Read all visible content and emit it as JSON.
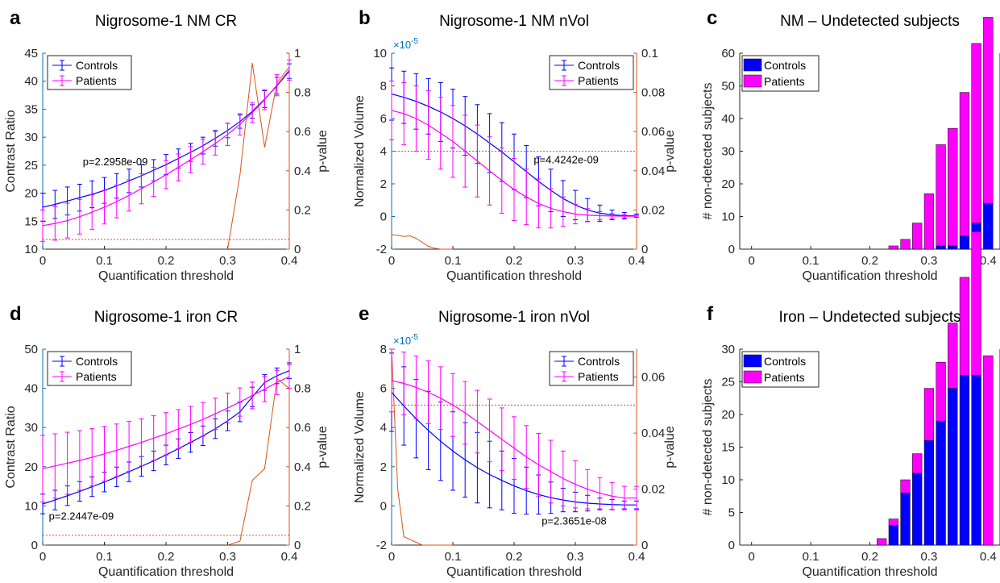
{
  "colors": {
    "controls": "#0000FF",
    "patients": "#FF00FF",
    "pvalue": "#D95319",
    "left_axis": "#0072BD",
    "axis": "#262626",
    "overlap": "#8000FF"
  },
  "chart_data": [
    {
      "id": "a",
      "type": "line",
      "letter": "a",
      "title": "Nigrosome-1 NM CR",
      "xlabel": "Quantification threshold",
      "ylabel": "Contrast Ratio",
      "y2label": "p-value",
      "xlim": [
        0,
        0.4
      ],
      "ylim": [
        10,
        45
      ],
      "y2lim": [
        0,
        1
      ],
      "xticks": [
        0,
        0.1,
        0.2,
        0.3,
        0.4
      ],
      "xtick_labels": [
        "0",
        "0.1",
        "0.2",
        "0.3",
        "0.4"
      ],
      "yticks": [
        10,
        15,
        20,
        25,
        30,
        35,
        40,
        45
      ],
      "ytick_labels": [
        "10",
        "15",
        "20",
        "25",
        "30",
        "35",
        "40",
        "45"
      ],
      "y2ticks": [
        0,
        0.2,
        0.4,
        0.6,
        0.8,
        1
      ],
      "y2tick_labels": [
        "0",
        "0.2",
        "0.4",
        "0.6",
        "0.8",
        "1"
      ],
      "legend": {
        "position": "top-left",
        "entries": [
          "Controls",
          "Patients"
        ]
      },
      "x": [
        0,
        0.02,
        0.04,
        0.06,
        0.08,
        0.1,
        0.12,
        0.14,
        0.16,
        0.18,
        0.2,
        0.22,
        0.24,
        0.26,
        0.28,
        0.3,
        0.32,
        0.34,
        0.36,
        0.38,
        0.4
      ],
      "series": [
        {
          "name": "Controls",
          "values": [
            17.5,
            18.0,
            18.6,
            19.2,
            19.8,
            20.5,
            21.3,
            22.2,
            23.1,
            24.1,
            25.1,
            26.2,
            27.3,
            28.5,
            29.8,
            31.2,
            32.8,
            34.6,
            36.8,
            39.2,
            41.8
          ],
          "errors": [
            2.5,
            2.5,
            2.5,
            2.4,
            2.4,
            2.3,
            2.2,
            2.1,
            2.0,
            1.9,
            1.8,
            1.7,
            1.6,
            1.5,
            1.4,
            1.3,
            1.2,
            1.2,
            1.5,
            1.5,
            1.3
          ]
        },
        {
          "name": "Patients",
          "values": [
            14.2,
            14.6,
            15.1,
            15.8,
            16.6,
            17.5,
            18.5,
            19.6,
            20.8,
            22.0,
            23.3,
            24.6,
            26.0,
            27.4,
            28.9,
            30.5,
            32.3,
            34.4,
            36.7,
            39.3,
            42.0
          ],
          "errors": [
            2.8,
            3.0,
            3.1,
            3.1,
            3.1,
            3.0,
            2.9,
            2.8,
            2.7,
            2.6,
            2.5,
            2.4,
            2.3,
            2.2,
            2.1,
            2.0,
            1.9,
            1.8,
            1.8,
            1.9,
            1.8
          ]
        }
      ],
      "pvalue": {
        "x": [
          0.3,
          0.32,
          0.34,
          0.36,
          0.38,
          0.4
        ],
        "values": [
          0.0,
          0.38,
          0.95,
          0.52,
          0.85,
          0.93
        ]
      },
      "threshold": 0.05,
      "annotation": "p=2.2958e-09",
      "annotation_at": [
        0.065,
        25.0
      ]
    },
    {
      "id": "b",
      "type": "line",
      "letter": "b",
      "title": "Nigrosome-1 NM nVol",
      "xlabel": "Quantification threshold",
      "ylabel": "Normalized Volume",
      "y2label": "p-value",
      "exponent": "×10",
      "exponent_power": "-5",
      "xlim": [
        0,
        0.4
      ],
      "ylim": [
        -2,
        10
      ],
      "y2lim": [
        0,
        0.1
      ],
      "xticks": [
        0,
        0.1,
        0.2,
        0.3,
        0.4
      ],
      "xtick_labels": [
        "0",
        "0.1",
        "0.2",
        "0.3",
        "0.4"
      ],
      "yticks": [
        -2,
        0,
        2,
        4,
        6,
        8,
        10
      ],
      "ytick_labels": [
        "-2",
        "0",
        "2",
        "4",
        "6",
        "8",
        "10"
      ],
      "y2ticks": [
        0,
        0.02,
        0.04,
        0.06,
        0.08,
        0.1
      ],
      "y2tick_labels": [
        "0",
        "0.02",
        "0.04",
        "0.06",
        "0.08",
        "0.1"
      ],
      "legend": {
        "position": "top-right",
        "entries": [
          "Controls",
          "Patients"
        ]
      },
      "x": [
        0,
        0.02,
        0.04,
        0.06,
        0.08,
        0.1,
        0.12,
        0.14,
        0.16,
        0.18,
        0.2,
        0.22,
        0.24,
        0.26,
        0.28,
        0.3,
        0.32,
        0.34,
        0.36,
        0.38,
        0.4
      ],
      "series": [
        {
          "name": "Controls",
          "values": [
            7.5,
            7.3,
            7.05,
            6.75,
            6.4,
            6.0,
            5.55,
            5.05,
            4.5,
            3.95,
            3.35,
            2.75,
            2.15,
            1.6,
            1.1,
            0.7,
            0.4,
            0.2,
            0.1,
            0.05,
            0.05
          ],
          "errors": [
            1.6,
            1.6,
            1.7,
            1.7,
            1.8,
            1.8,
            1.8,
            1.8,
            1.8,
            1.8,
            1.7,
            1.6,
            1.5,
            1.3,
            1.1,
            0.9,
            0.7,
            0.5,
            0.3,
            0.2,
            0.1
          ]
        },
        {
          "name": "Patients",
          "values": [
            6.5,
            6.3,
            6.0,
            5.6,
            5.1,
            4.6,
            4.0,
            3.4,
            2.8,
            2.2,
            1.65,
            1.2,
            0.8,
            0.5,
            0.3,
            0.15,
            0.08,
            0.05,
            0.03,
            0.02,
            0.02
          ],
          "errors": [
            1.8,
            1.9,
            2.0,
            2.1,
            2.2,
            2.2,
            2.2,
            2.2,
            2.1,
            2.0,
            1.9,
            1.7,
            1.5,
            1.2,
            0.9,
            0.6,
            0.4,
            0.25,
            0.15,
            0.1,
            0.05
          ]
        }
      ],
      "pvalue": {
        "x": [
          0,
          0.01,
          0.02,
          0.03,
          0.04,
          0.05,
          0.06,
          0.07,
          0.08,
          0.1
        ],
        "values": [
          0.0075,
          0.007,
          0.0065,
          0.0068,
          0.0055,
          0.0035,
          0.0015,
          0.0005,
          0.0,
          0.0
        ]
      },
      "threshold": 0.05,
      "annotation": "p=4.4242e-09",
      "annotation_at": [
        0.232,
        3.25
      ]
    },
    {
      "id": "c",
      "type": "bar",
      "letter": "c",
      "title": "NM – Undetected subjects",
      "xlabel": "Quantification threshold",
      "ylabel": "# non-detected subjects",
      "xlim": [
        -0.02,
        0.42
      ],
      "ylim": [
        0,
        60
      ],
      "xticks": [
        0,
        0.1,
        0.2,
        0.3,
        0.4
      ],
      "xtick_labels": [
        "0",
        "0.1",
        "0.2",
        "0.3",
        "0.4"
      ],
      "yticks": [
        0,
        10,
        20,
        30,
        40,
        50,
        60
      ],
      "ytick_labels": [
        "0",
        "10",
        "20",
        "30",
        "40",
        "50",
        "60"
      ],
      "legend": {
        "position": "top-left",
        "entries": [
          "Controls",
          "Patients"
        ]
      },
      "x": [
        0.24,
        0.26,
        0.28,
        0.3,
        0.32,
        0.34,
        0.36,
        0.38,
        0.4
      ],
      "series": [
        {
          "name": "Controls",
          "values": [
            0,
            0,
            0,
            0,
            1,
            1,
            4,
            8,
            14
          ]
        },
        {
          "name": "Patients",
          "values": [
            1,
            3,
            8,
            17,
            31,
            36,
            44,
            55,
            57
          ]
        }
      ]
    },
    {
      "id": "d",
      "type": "line",
      "letter": "d",
      "title": "Nigrosome-1 iron CR",
      "xlabel": "Quantification threshold",
      "ylabel": "Contrast Ratio",
      "y2label": "p-value",
      "xlim": [
        0,
        0.4
      ],
      "ylim": [
        0,
        50
      ],
      "y2lim": [
        0,
        1
      ],
      "xticks": [
        0,
        0.1,
        0.2,
        0.3,
        0.4
      ],
      "xtick_labels": [
        "0",
        "0.1",
        "0.2",
        "0.3",
        "0.4"
      ],
      "yticks": [
        0,
        10,
        20,
        30,
        40,
        50
      ],
      "ytick_labels": [
        "0",
        "10",
        "20",
        "30",
        "40",
        "50"
      ],
      "y2ticks": [
        0,
        0.2,
        0.4,
        0.6,
        0.8,
        1
      ],
      "y2tick_labels": [
        "0",
        "0.2",
        "0.4",
        "0.6",
        "0.8",
        "1"
      ],
      "legend": {
        "position": "top-left",
        "entries": [
          "Controls",
          "Patients"
        ]
      },
      "x": [
        0,
        0.02,
        0.04,
        0.06,
        0.08,
        0.1,
        0.12,
        0.14,
        0.16,
        0.18,
        0.2,
        0.22,
        0.24,
        0.26,
        0.28,
        0.3,
        0.32,
        0.34,
        0.36,
        0.38,
        0.4
      ],
      "series": [
        {
          "name": "Controls",
          "values": [
            10.5,
            11.5,
            12.6,
            13.7,
            14.9,
            16.1,
            17.4,
            18.7,
            20.1,
            21.5,
            23.0,
            24.6,
            26.2,
            27.9,
            29.7,
            31.7,
            34.0,
            37.8,
            41.5,
            43.2,
            44.5
          ],
          "errors": [
            2.5,
            2.5,
            2.5,
            2.5,
            2.5,
            2.5,
            2.5,
            2.5,
            2.5,
            2.5,
            2.5,
            2.5,
            2.5,
            2.5,
            2.5,
            2.5,
            2.5,
            2.5,
            2.0,
            2.0,
            2.0
          ]
        },
        {
          "name": "Patients",
          "values": [
            19.5,
            20.2,
            20.9,
            21.6,
            22.4,
            23.3,
            24.2,
            25.2,
            26.2,
            27.3,
            28.4,
            29.6,
            30.8,
            32.1,
            33.5,
            35.0,
            36.5,
            38.2,
            39.8,
            41.5,
            43.0
          ],
          "errors": [
            8.5,
            8.2,
            7.9,
            7.6,
            7.3,
            7.0,
            6.7,
            6.4,
            6.0,
            5.7,
            5.4,
            5.0,
            4.6,
            4.3,
            4.0,
            3.8,
            3.6,
            3.4,
            3.2,
            3.1,
            3.0
          ]
        }
      ],
      "pvalue": {
        "x": [
          0.3,
          0.32,
          0.34,
          0.36,
          0.38,
          0.4
        ],
        "values": [
          0.0,
          0.02,
          0.33,
          0.39,
          0.85,
          0.8
        ]
      },
      "threshold": 0.05,
      "annotation": "p=2.2447e-09",
      "annotation_at": [
        0.01,
        6.5
      ]
    },
    {
      "id": "e",
      "type": "line",
      "letter": "e",
      "title": "Nigrosome-1 iron nVol",
      "xlabel": "Quantification threshold",
      "ylabel": "Normalized Volume",
      "y2label": "p-value",
      "exponent": "×10",
      "exponent_power": "-5",
      "xlim": [
        0,
        0.4
      ],
      "ylim": [
        -2,
        8
      ],
      "y2lim": [
        0,
        0.07
      ],
      "xticks": [
        0,
        0.1,
        0.2,
        0.3,
        0.4
      ],
      "xtick_labels": [
        "0",
        "0.1",
        "0.2",
        "0.3",
        "0.4"
      ],
      "yticks": [
        -2,
        0,
        2,
        4,
        6,
        8
      ],
      "ytick_labels": [
        "-2",
        "0",
        "2",
        "4",
        "6",
        "8"
      ],
      "y2ticks": [
        0,
        0.02,
        0.04,
        0.06
      ],
      "y2tick_labels": [
        "0",
        "0.02",
        "0.04",
        "0.06"
      ],
      "legend": {
        "position": "top-right",
        "entries": [
          "Controls",
          "Patients"
        ]
      },
      "x": [
        0,
        0.02,
        0.04,
        0.06,
        0.08,
        0.1,
        0.12,
        0.14,
        0.16,
        0.18,
        0.2,
        0.22,
        0.24,
        0.26,
        0.28,
        0.3,
        0.32,
        0.34,
        0.36,
        0.38,
        0.4
      ],
      "series": [
        {
          "name": "Controls",
          "values": [
            5.8,
            5.1,
            4.45,
            3.85,
            3.3,
            2.8,
            2.35,
            1.95,
            1.6,
            1.3,
            1.02,
            0.78,
            0.58,
            0.42,
            0.3,
            0.2,
            0.14,
            0.1,
            0.07,
            0.05,
            0.05
          ],
          "errors": [
            2.0,
            2.0,
            2.0,
            2.0,
            2.0,
            2.0,
            1.9,
            1.8,
            1.7,
            1.5,
            1.4,
            1.2,
            1.0,
            0.8,
            0.6,
            0.5,
            0.4,
            0.3,
            0.25,
            0.2,
            0.2
          ]
        },
        {
          "name": "Patients",
          "values": [
            6.4,
            6.25,
            6.05,
            5.8,
            5.5,
            5.15,
            4.75,
            4.3,
            3.85,
            3.4,
            2.95,
            2.5,
            2.1,
            1.75,
            1.4,
            1.1,
            0.85,
            0.65,
            0.5,
            0.4,
            0.4
          ],
          "errors": [
            1.6,
            1.6,
            1.6,
            1.6,
            1.6,
            1.6,
            1.6,
            1.6,
            1.6,
            1.6,
            1.6,
            1.6,
            1.6,
            1.6,
            1.4,
            1.2,
            1.0,
            0.8,
            0.7,
            0.6,
            0.6
          ]
        }
      ],
      "pvalue": {
        "x": [
          0,
          0.01,
          0.02,
          0.03,
          0.04,
          0.05,
          0.06,
          0.1
        ],
        "values": [
          0.07,
          0.02,
          0.003,
          0.002,
          0.001,
          0.0,
          0.0,
          0.0
        ]
      },
      "threshold": 0.05,
      "annotation": "p=2.3651e-08",
      "annotation_at": [
        0.245,
        -0.95
      ]
    },
    {
      "id": "f",
      "type": "bar",
      "letter": "f",
      "title": "Iron – Undetected subjects",
      "xlabel": "Quantification threshold",
      "ylabel": "# non-detected subjects",
      "xlim": [
        -0.02,
        0.42
      ],
      "ylim": [
        0,
        30
      ],
      "xticks": [
        0,
        0.1,
        0.2,
        0.3,
        0.4
      ],
      "xtick_labels": [
        "0",
        "0.1",
        "0.2",
        "0.3",
        "0.4"
      ],
      "yticks": [
        0,
        5,
        10,
        15,
        20,
        25,
        30
      ],
      "ytick_labels": [
        "0",
        "5",
        "10",
        "15",
        "20",
        "25",
        "30"
      ],
      "legend": {
        "position": "top-left",
        "entries": [
          "Controls",
          "Patients"
        ]
      },
      "x": [
        0.22,
        0.24,
        0.26,
        0.28,
        0.3,
        0.32,
        0.34,
        0.36,
        0.38,
        0.4
      ],
      "series": [
        {
          "name": "Controls",
          "values": [
            0,
            3,
            8,
            11,
            16,
            19,
            24,
            26,
            26,
            0
          ]
        },
        {
          "name": "Patients",
          "values": [
            1,
            1,
            2,
            3,
            8,
            9,
            10,
            15,
            22,
            29
          ]
        }
      ]
    }
  ]
}
